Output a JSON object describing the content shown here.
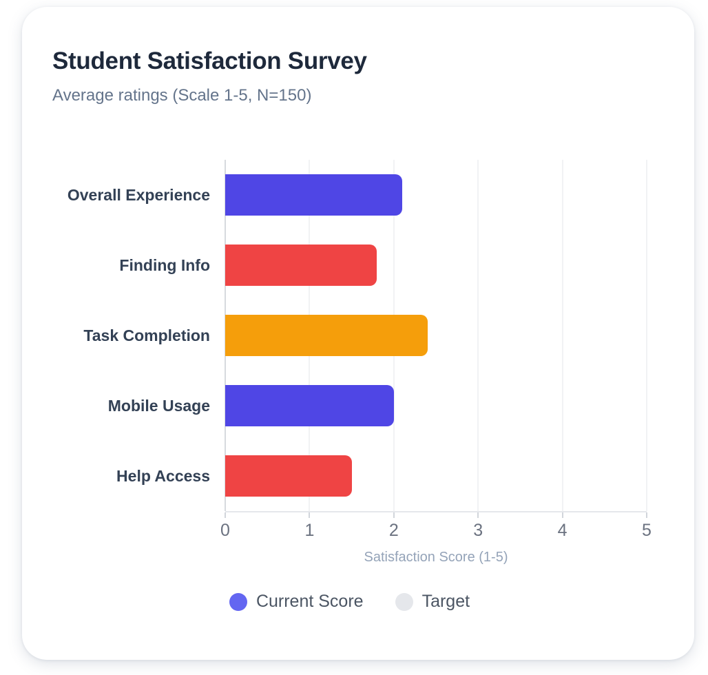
{
  "header": {
    "title": "Student Satisfaction Survey",
    "subtitle": "Average ratings (Scale 1-5, N=150)"
  },
  "chart_data": {
    "type": "bar",
    "orientation": "horizontal",
    "title": "Student Satisfaction Survey",
    "subtitle": "Average ratings (Scale 1-5, N=150)",
    "categories": [
      "Overall Experience",
      "Finding Info",
      "Task Completion",
      "Mobile Usage",
      "Help Access"
    ],
    "series": [
      {
        "name": "Current Score",
        "values": [
          2.1,
          1.8,
          2.4,
          2.0,
          1.5
        ],
        "bar_colors": [
          "#4f46e5",
          "#ef4444",
          "#f59e0b",
          "#4f46e5",
          "#ef4444"
        ]
      },
      {
        "name": "Target",
        "color": "#e5e7eb",
        "values_visible": false
      }
    ],
    "xlabel": "Satisfaction Score (1-5)",
    "xlim": [
      0,
      5
    ],
    "xticks": [
      "0",
      "1",
      "2",
      "3",
      "4",
      "5"
    ],
    "grid": true,
    "legend": {
      "position": "bottom",
      "items": [
        {
          "label": "Current Score",
          "color": "#6366f1"
        },
        {
          "label": "Target",
          "color": "#e5e7eb"
        }
      ]
    }
  },
  "style": {
    "title_color": "#1e293b",
    "subtitle_color": "#64748b",
    "category_label_color": "#334155",
    "tick_label_color": "#6b7280",
    "axis_title_color": "#94a3b8",
    "legend_text_color": "#4b5563",
    "gridline_color": "#f1f2f4",
    "zero_line_color": "#d7dade",
    "axis_line_color": "#e5e7eb",
    "card_background": "#ffffff"
  }
}
